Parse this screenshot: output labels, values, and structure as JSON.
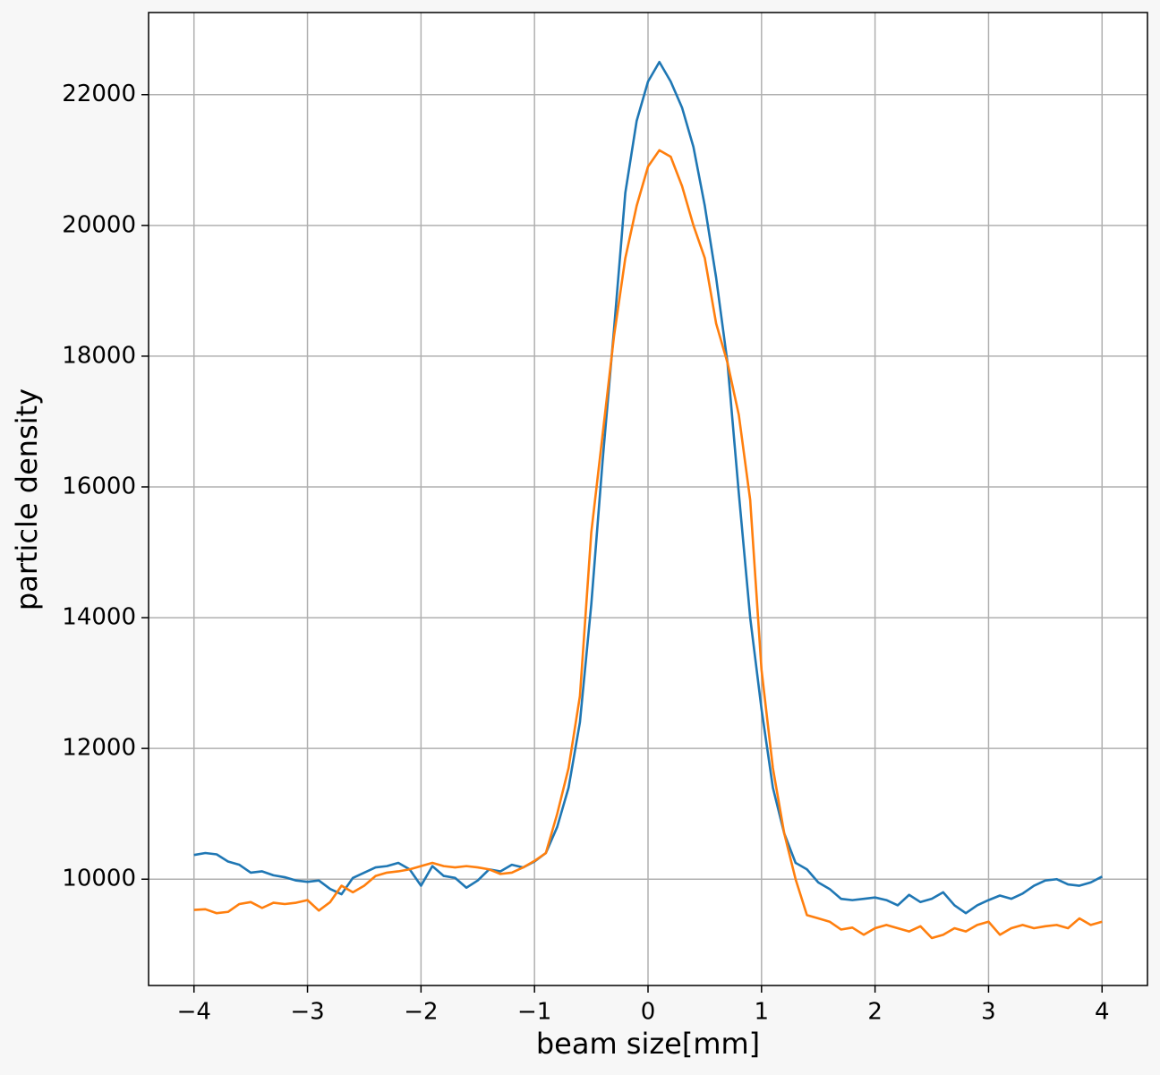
{
  "chart_data": {
    "type": "line",
    "xlabel": "beam size[mm]",
    "ylabel": "particle density",
    "x": [
      -4.0,
      -3.9,
      -3.8,
      -3.7,
      -3.6,
      -3.5,
      -3.4,
      -3.3,
      -3.2,
      -3.1,
      -3.0,
      -2.9,
      -2.8,
      -2.7,
      -2.6,
      -2.5,
      -2.4,
      -2.3,
      -2.2,
      -2.1,
      -2.0,
      -1.9,
      -1.8,
      -1.7,
      -1.6,
      -1.5,
      -1.4,
      -1.3,
      -1.2,
      -1.1,
      -1.0,
      -0.9,
      -0.8,
      -0.7,
      -0.6,
      -0.5,
      -0.4,
      -0.3,
      -0.2,
      -0.1,
      0.0,
      0.1,
      0.2,
      0.3,
      0.4,
      0.5,
      0.6,
      0.7,
      0.8,
      0.9,
      1.0,
      1.1,
      1.2,
      1.3,
      1.4,
      1.5,
      1.6,
      1.7,
      1.8,
      1.9,
      2.0,
      2.1,
      2.2,
      2.3,
      2.4,
      2.5,
      2.6,
      2.7,
      2.8,
      2.9,
      3.0,
      3.1,
      3.2,
      3.3,
      3.4,
      3.5,
      3.6,
      3.7,
      3.8,
      3.9,
      4.0
    ],
    "series": [
      {
        "color": "#1f77b4",
        "values": [
          10370,
          10400,
          10380,
          10270,
          10220,
          10100,
          10120,
          10060,
          10030,
          9980,
          9960,
          9980,
          9850,
          9770,
          10020,
          10100,
          10180,
          10200,
          10250,
          10150,
          9900,
          10200,
          10050,
          10020,
          9870,
          9980,
          10150,
          10120,
          10220,
          10180,
          10270,
          10400,
          10800,
          11400,
          12400,
          14200,
          16400,
          18400,
          20500,
          21600,
          22200,
          22500,
          22200,
          21800,
          21200,
          20300,
          19200,
          17900,
          15900,
          14000,
          12600,
          11400,
          10700,
          10250,
          10150,
          9950,
          9850,
          9700,
          9680,
          9700,
          9720,
          9680,
          9600,
          9760,
          9650,
          9700,
          9800,
          9600,
          9480,
          9600,
          9680,
          9750,
          9700,
          9780,
          9900,
          9980,
          10000,
          9920,
          9900,
          9950,
          10040
        ]
      },
      {
        "color": "#ff7f0e",
        "values": [
          9530,
          9540,
          9480,
          9500,
          9620,
          9650,
          9560,
          9640,
          9620,
          9640,
          9680,
          9520,
          9650,
          9900,
          9800,
          9900,
          10050,
          10100,
          10120,
          10150,
          10200,
          10250,
          10200,
          10180,
          10200,
          10180,
          10150,
          10080,
          10100,
          10180,
          10280,
          10400,
          11000,
          11700,
          12800,
          15300,
          16800,
          18300,
          19500,
          20300,
          20900,
          21150,
          21050,
          20600,
          20000,
          19500,
          18500,
          17900,
          17100,
          15800,
          13200,
          11700,
          10700,
          10000,
          9450,
          9400,
          9350,
          9230,
          9260,
          9150,
          9250,
          9300,
          9250,
          9200,
          9280,
          9100,
          9150,
          9250,
          9200,
          9300,
          9350,
          9150,
          9250,
          9300,
          9250,
          9280,
          9300,
          9250,
          9400,
          9300,
          9350
        ]
      }
    ],
    "xlim": [
      -4.4,
      4.4
    ],
    "ylim": [
      8374,
      23256
    ],
    "xticks": [
      {
        "value": -4,
        "label": "−4"
      },
      {
        "value": -3,
        "label": "−3"
      },
      {
        "value": -2,
        "label": "−2"
      },
      {
        "value": -1,
        "label": "−1"
      },
      0,
      1,
      2,
      3,
      4
    ],
    "yticks": [
      10000,
      12000,
      14000,
      16000,
      18000,
      20000,
      22000
    ],
    "grid": true
  }
}
